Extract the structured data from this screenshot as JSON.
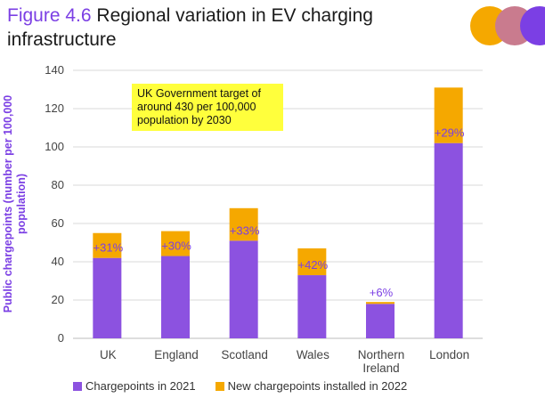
{
  "figure": {
    "number": "Figure 4.6",
    "title": "Regional variation in EV charging infrastructure"
  },
  "annotation": "UK Government target of around 430 per 100,000 population by 2030",
  "colors": {
    "accent": "#7b3fe4",
    "series_2021": "#8c52e0",
    "series_2022": "#f5a800",
    "annotation_bg": "#ffff3c",
    "logo": [
      "#f5a800",
      "#c97b8e",
      "#7b3fe4"
    ]
  },
  "chart_data": {
    "type": "bar",
    "stacked": true,
    "categories": [
      "UK",
      "England",
      "Scotland",
      "Wales",
      "Northern Ireland",
      "London"
    ],
    "category_lines": [
      [
        "UK"
      ],
      [
        "England"
      ],
      [
        "Scotland"
      ],
      [
        "Wales"
      ],
      [
        "Northern",
        "Ireland"
      ],
      [
        "London"
      ]
    ],
    "series": [
      {
        "name": "Chargepoints in 2021",
        "values": [
          42,
          43,
          51,
          33,
          18,
          102
        ]
      },
      {
        "name": "New chargepoints installed in 2022",
        "values": [
          13,
          13,
          17,
          14,
          1,
          29
        ]
      }
    ],
    "data_labels": [
      "+31%",
      "+30%",
      "+33%",
      "+42%",
      "+6%",
      "+29%"
    ],
    "ylabel": "Public chargepoints (number per 100,000 population)",
    "ylabel_lines": [
      "Public chargepoints (number per 100,000",
      "population)"
    ],
    "ylim": [
      0,
      140
    ],
    "yticks": [
      0,
      20,
      40,
      60,
      80,
      100,
      120,
      140
    ],
    "grid": true,
    "legend_position": "bottom"
  }
}
